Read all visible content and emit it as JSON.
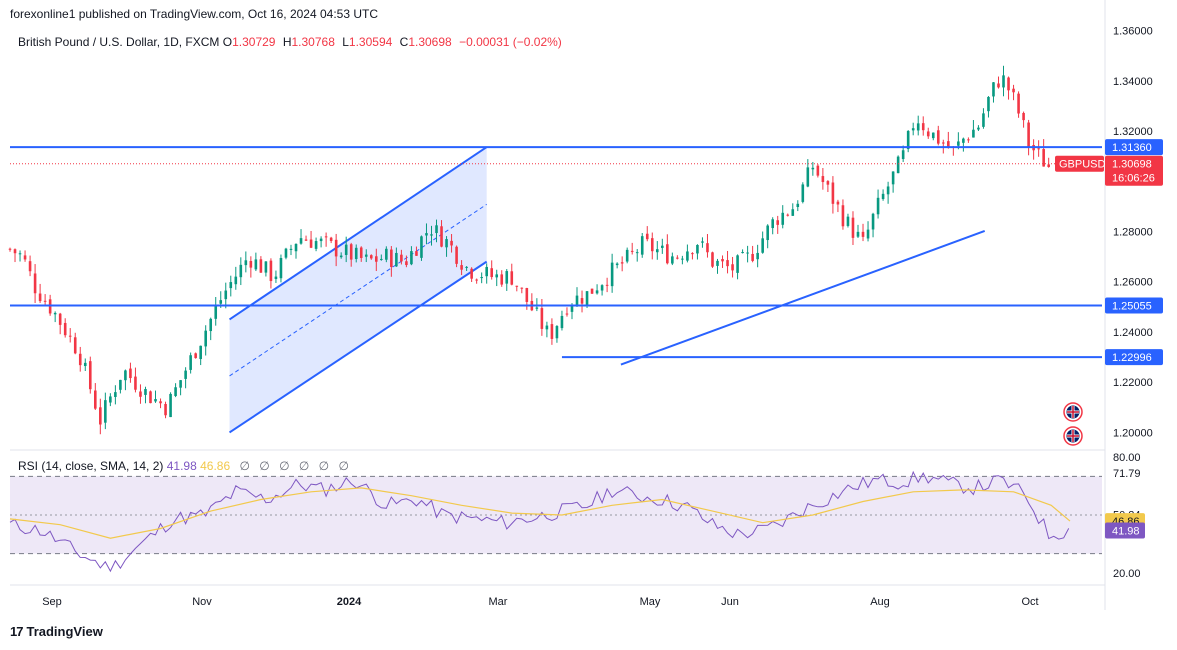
{
  "publish_line": "forexonline1 published on TradingView.com, Oct 16, 2024 04:53 UTC",
  "legend": {
    "symbol": "British Pound / U.S. Dollar, 1D, FXCM",
    "o_label": "O",
    "o": "1.30729",
    "h_label": "H",
    "h": "1.30768",
    "l_label": "L",
    "l": "1.30594",
    "c_label": "C",
    "c": "1.30698",
    "change": "−0.00031 (−0.02%)"
  },
  "rsi_legend": {
    "label": "RSI (14, close, SMA, 14, 2)",
    "rsi_value": "41.98",
    "sma_value": "46.86",
    "icons": [
      "∅",
      "∅",
      "∅",
      "∅",
      "∅",
      "∅"
    ]
  },
  "branding": {
    "logo_text": "TradingView",
    "logo_mark": "17"
  },
  "colors": {
    "up": "#089981",
    "down": "#f23645",
    "line": "#2962ff",
    "channel_fill": "#bbcbff",
    "rsi": "#7e57c2",
    "rsi_sma": "#f2c94c",
    "rsi_band": "#ece6f6",
    "label_bg": "#2962ff",
    "price_label_bg": "#f23645"
  },
  "icons": [
    "uk-flag-icon",
    "us-flag-icon"
  ],
  "chart_data": [
    {
      "type": "candlestick",
      "title": "British Pound / U.S. Dollar, 1D, FXCM",
      "x_ticks": [
        "Sep",
        "Nov",
        "2024",
        "Mar",
        "May",
        "Jun",
        "Aug",
        "Oct"
      ],
      "y_ticks": [
        "1.36000",
        "1.34000",
        "1.32000",
        "1.28000",
        "1.26000",
        "1.24000",
        "1.22000",
        "1.20000"
      ],
      "ylim": [
        1.195,
        1.361
      ],
      "price_labels": [
        {
          "value": "1.31360",
          "type": "level"
        },
        {
          "value": "1.30698",
          "type": "last",
          "symbol": "GBPUSD",
          "countdown": "16:06:26"
        },
        {
          "value": "1.25055",
          "type": "level"
        },
        {
          "value": "1.22996",
          "type": "level"
        }
      ],
      "horizontal_levels": [
        1.3136,
        1.25055,
        1.22996
      ],
      "close_path": [
        [
          0,
          1.273
        ],
        [
          10,
          1.27
        ],
        [
          20,
          1.258
        ],
        [
          35,
          1.248
        ],
        [
          55,
          1.232
        ],
        [
          72,
          1.205
        ],
        [
          90,
          1.225
        ],
        [
          110,
          1.215
        ],
        [
          125,
          1.21
        ],
        [
          140,
          1.225
        ],
        [
          155,
          1.24
        ],
        [
          170,
          1.255
        ],
        [
          190,
          1.27
        ],
        [
          210,
          1.262
        ],
        [
          230,
          1.278
        ],
        [
          250,
          1.275
        ],
        [
          265,
          1.272
        ],
        [
          285,
          1.268
        ],
        [
          300,
          1.27
        ],
        [
          315,
          1.268
        ],
        [
          335,
          1.282
        ],
        [
          350,
          1.275
        ],
        [
          365,
          1.265
        ],
        [
          385,
          1.262
        ],
        [
          400,
          1.262
        ],
        [
          415,
          1.25
        ],
        [
          430,
          1.238
        ],
        [
          445,
          1.252
        ],
        [
          460,
          1.255
        ],
        [
          475,
          1.262
        ],
        [
          490,
          1.268
        ],
        [
          505,
          1.275
        ],
        [
          518,
          1.272
        ],
        [
          530,
          1.27
        ],
        [
          548,
          1.276
        ],
        [
          560,
          1.268
        ],
        [
          575,
          1.265
        ],
        [
          590,
          1.27
        ],
        [
          610,
          1.285
        ],
        [
          625,
          1.29
        ],
        [
          640,
          1.306
        ],
        [
          650,
          1.298
        ],
        [
          665,
          1.285
        ],
        [
          680,
          1.275
        ],
        [
          690,
          1.288
        ],
        [
          700,
          1.298
        ],
        [
          712,
          1.31
        ],
        [
          722,
          1.326
        ],
        [
          732,
          1.32
        ],
        [
          742,
          1.316
        ],
        [
          752,
          1.312
        ],
        [
          762,
          1.318
        ],
        [
          772,
          1.322
        ],
        [
          782,
          1.335
        ],
        [
          790,
          1.342
        ],
        [
          798,
          1.335
        ],
        [
          805,
          1.326
        ],
        [
          812,
          1.315
        ],
        [
          820,
          1.31
        ],
        [
          828,
          1.306
        ]
      ],
      "trendlines": [
        {
          "from": [
            0,
            1.245
          ],
          "to": [
            360,
            1.313
          ]
        },
        {
          "from": [
            0,
            1.2
          ],
          "to": [
            360,
            1.268
          ]
        },
        {
          "from": [
            465,
            1.227
          ],
          "to": [
            770,
            1.28
          ]
        },
        {
          "from": [
            445,
            1.23
          ],
          "to": [
            825,
            1.23
          ]
        }
      ]
    },
    {
      "type": "line",
      "title": "RSI (14, close, SMA, 14, 2)",
      "y_ticks": [
        "80.00",
        "71.79",
        "50.24",
        "20.00"
      ],
      "ylim": [
        20,
        80
      ],
      "band": [
        30,
        70
      ],
      "midline": 50,
      "last_labels": [
        {
          "name": "SMA",
          "value": "46.86"
        },
        {
          "name": "RSI",
          "value": "41.98"
        }
      ],
      "rsi_path": [
        [
          0,
          45
        ],
        [
          25,
          42
        ],
        [
          55,
          30
        ],
        [
          80,
          22
        ],
        [
          105,
          35
        ],
        [
          130,
          48
        ],
        [
          155,
          50
        ],
        [
          180,
          62
        ],
        [
          205,
          58
        ],
        [
          230,
          66
        ],
        [
          250,
          63
        ],
        [
          275,
          68
        ],
        [
          300,
          55
        ],
        [
          325,
          58
        ],
        [
          345,
          50
        ],
        [
          370,
          48
        ],
        [
          395,
          46
        ],
        [
          420,
          49
        ],
        [
          440,
          52
        ],
        [
          460,
          55
        ],
        [
          480,
          63
        ],
        [
          500,
          60
        ],
        [
          520,
          58
        ],
        [
          540,
          54
        ],
        [
          560,
          45
        ],
        [
          580,
          40
        ],
        [
          600,
          42
        ],
        [
          615,
          46
        ],
        [
          630,
          52
        ],
        [
          650,
          58
        ],
        [
          670,
          64
        ],
        [
          690,
          68
        ],
        [
          710,
          67
        ],
        [
          730,
          70
        ],
        [
          750,
          66
        ],
        [
          770,
          64
        ],
        [
          790,
          68
        ],
        [
          810,
          60
        ],
        [
          828,
          40
        ],
        [
          845,
          42
        ]
      ],
      "sma_path": [
        [
          0,
          48
        ],
        [
          40,
          45
        ],
        [
          80,
          38
        ],
        [
          120,
          43
        ],
        [
          160,
          52
        ],
        [
          200,
          58
        ],
        [
          240,
          62
        ],
        [
          280,
          64
        ],
        [
          320,
          60
        ],
        [
          360,
          55
        ],
        [
          400,
          51
        ],
        [
          440,
          50
        ],
        [
          480,
          55
        ],
        [
          520,
          58
        ],
        [
          560,
          52
        ],
        [
          600,
          46
        ],
        [
          640,
          50
        ],
        [
          680,
          57
        ],
        [
          720,
          62
        ],
        [
          760,
          63
        ],
        [
          800,
          62
        ],
        [
          830,
          55
        ],
        [
          845,
          46.86
        ]
      ]
    }
  ]
}
